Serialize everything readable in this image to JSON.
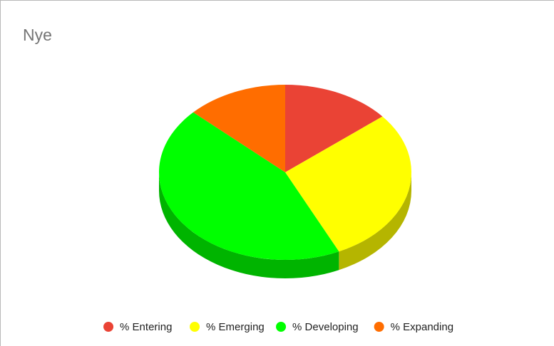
{
  "chart_data": {
    "type": "pie",
    "title": "Nye",
    "style": "3d",
    "legend_position": "bottom",
    "slices": [
      {
        "label": "% Entering",
        "value": 14,
        "color": "#ea4335",
        "side_color": "#b3332a"
      },
      {
        "label": "% Emerging",
        "value": 29,
        "color": "#ffff00",
        "side_color": "#b5b500"
      },
      {
        "label": "% Developing",
        "value": 44,
        "color": "#00ff00",
        "side_color": "#00b400"
      },
      {
        "label": "% Expanding",
        "value": 13,
        "color": "#ff6d00",
        "side_color": "#b44d00"
      }
    ]
  }
}
